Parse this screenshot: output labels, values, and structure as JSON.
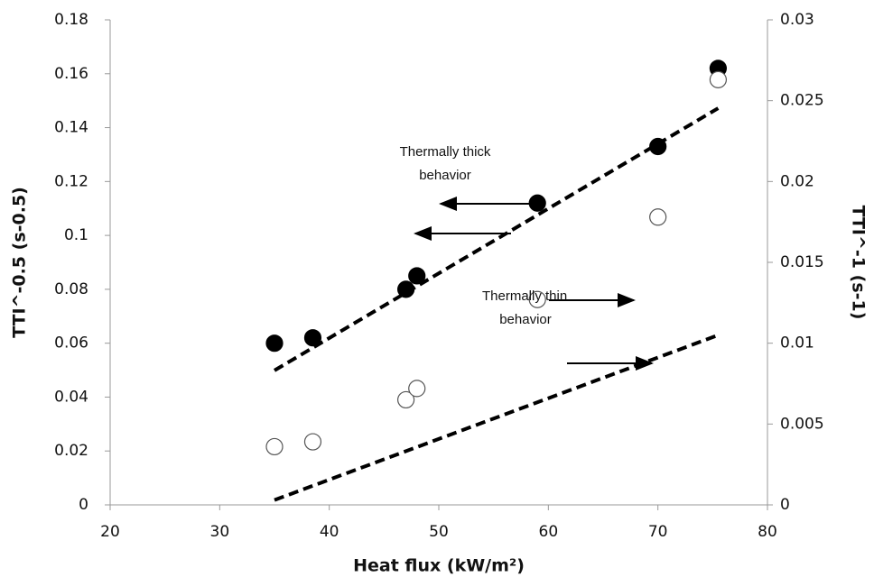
{
  "chart_data": {
    "type": "scatter",
    "x_label": "Heat flux (kW/m²)",
    "y_label": "TTI^-0.5 (s-0.5)",
    "y2_label": "TTI^-1 (s-1)",
    "xlim": [
      20,
      80
    ],
    "xticks": [
      20,
      30,
      40,
      50,
      60,
      70,
      80
    ],
    "ylim": [
      0,
      0.18
    ],
    "yticks": [
      0,
      0.02,
      0.04,
      0.06,
      0.08,
      0.1,
      0.12,
      0.14,
      0.16,
      0.18
    ],
    "y2lim": [
      0,
      0.03
    ],
    "y2ticks": [
      0,
      0.005,
      0.01,
      0.015,
      0.02,
      0.025,
      0.03
    ],
    "grid": false,
    "series": [
      {
        "marker": "filled",
        "color": "#000000",
        "axis": "y",
        "x": [
          35,
          38.5,
          47,
          48,
          59,
          70,
          75.5
        ],
        "values": [
          0.06,
          0.062,
          0.08,
          0.085,
          0.112,
          0.133,
          0.162
        ]
      },
      {
        "marker": "open",
        "color": "#ffffff",
        "axis": "y2",
        "x": [
          35,
          38.5,
          47,
          48,
          59,
          70,
          75.5
        ],
        "values": [
          0.0036,
          0.0039,
          0.0065,
          0.0072,
          0.0127,
          0.0178,
          0.0263
        ]
      },
      {
        "marker": "dashed-line",
        "color": "#000000",
        "axis": "y",
        "x": [
          35,
          75.5
        ],
        "values": [
          0.0499,
          0.1472
        ]
      },
      {
        "marker": "dashed-line",
        "color": "#000000",
        "axis": "y2",
        "x": [
          35,
          75.5
        ],
        "values": [
          0.0003,
          0.0105
        ]
      }
    ],
    "annotations": [
      {
        "lines": [
          "Thermally thick",
          "behavior"
        ]
      },
      {
        "lines": [
          "Thermally thin",
          "behavior"
        ]
      }
    ]
  }
}
